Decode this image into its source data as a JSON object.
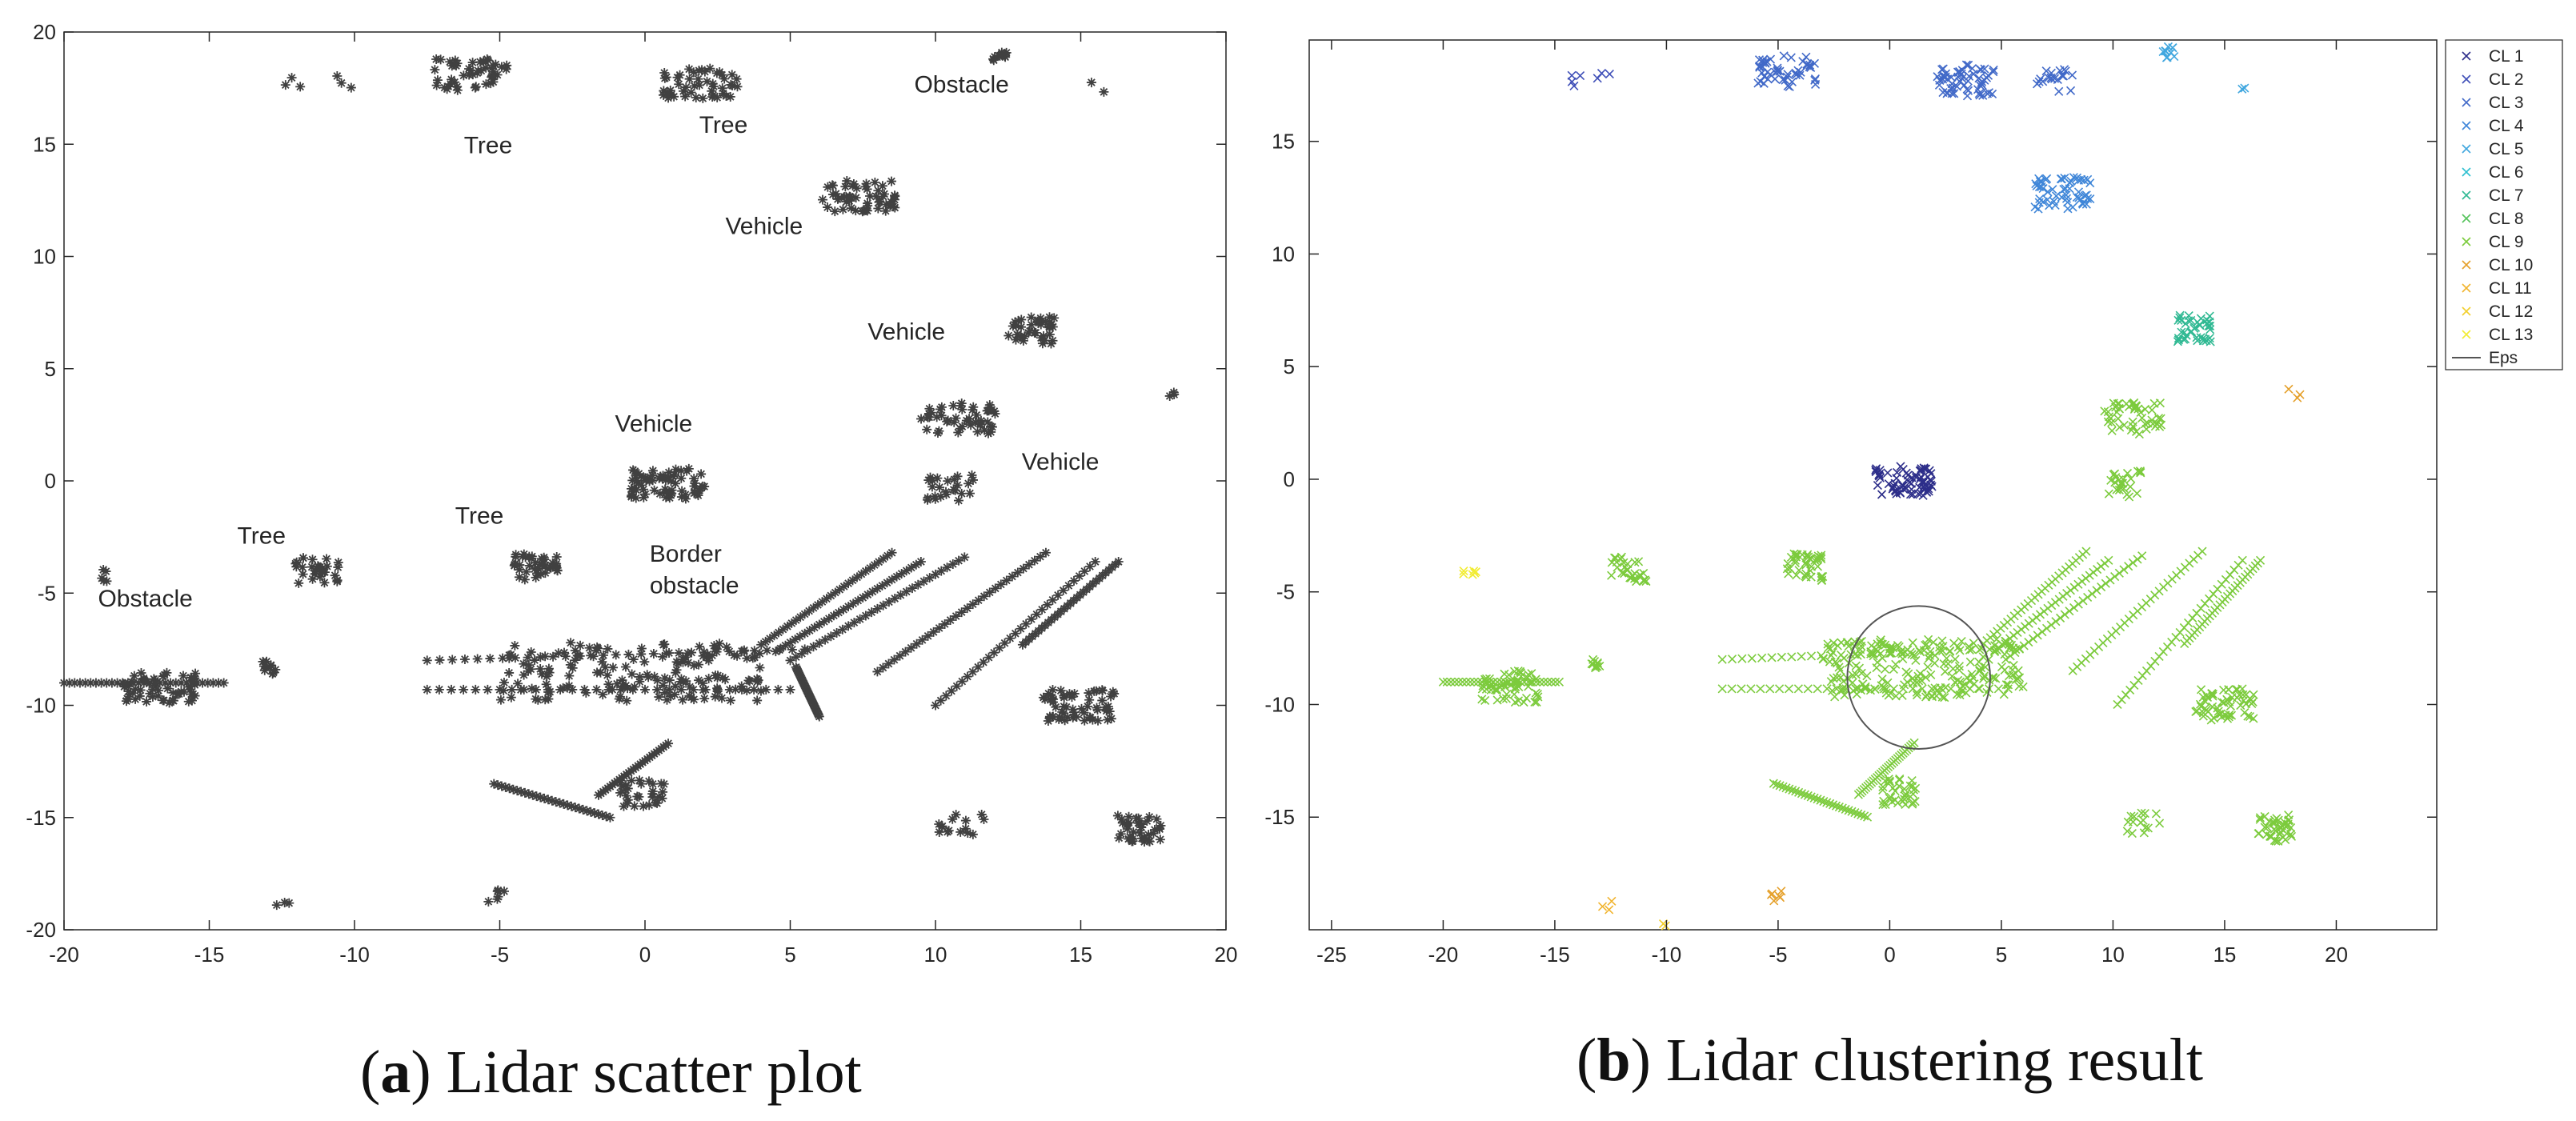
{
  "chart_data": [
    {
      "type": "scatter",
      "panel_label": "a",
      "caption": "Lidar scatter plot",
      "xlim": [
        -20,
        20
      ],
      "ylim": [
        -20,
        20
      ],
      "xticks": [
        -20,
        -15,
        -10,
        -5,
        0,
        5,
        10,
        15,
        20
      ],
      "yticks": [
        -20,
        -15,
        -10,
        -5,
        0,
        5,
        10,
        15,
        20
      ],
      "grid": false,
      "marker": "asterisk",
      "color": "#404040",
      "annotations": [
        {
          "text": "Tree",
          "x": -5.4,
          "y": 14.6
        },
        {
          "text": "Tree",
          "x": 2.7,
          "y": 15.5
        },
        {
          "text": "Obstacle",
          "x": 10.9,
          "y": 17.3
        },
        {
          "text": "Vehicle",
          "x": 4.1,
          "y": 11.0
        },
        {
          "text": "Vehicle",
          "x": 9.0,
          "y": 6.3
        },
        {
          "text": "Vehicle",
          "x": 0.3,
          "y": 2.2
        },
        {
          "text": "Vehicle",
          "x": 14.3,
          "y": 0.5
        },
        {
          "text": "Tree",
          "x": -13.2,
          "y": -2.8
        },
        {
          "text": "Tree",
          "x": -5.7,
          "y": -1.9
        },
        {
          "text": "Border",
          "x": 1.4,
          "y": -3.6
        },
        {
          "text": "obstacle",
          "x": 1.7,
          "y": -5.0
        },
        {
          "text": "Obstacle",
          "x": -17.2,
          "y": -5.6
        }
      ],
      "clusters": [
        {
          "x": 5.5,
          "y": 8.3,
          "n": 70,
          "shape": "band",
          "x2": 3.0,
          "y2": 17.7
        },
        {
          "x": -12.1,
          "y": 17.7,
          "n": 3
        },
        {
          "x": -10.4,
          "y": 17.8,
          "n": 3
        },
        {
          "x": -6.0,
          "y": 18.1,
          "n": 50
        },
        {
          "x": 1.9,
          "y": 17.7,
          "n": 50
        },
        {
          "x": 7.4,
          "y": 12.7,
          "n": 55
        },
        {
          "x": 13.3,
          "y": 6.7,
          "n": 40
        },
        {
          "x": 10.8,
          "y": 2.8,
          "n": 50
        },
        {
          "x": 0.8,
          "y": -0.1,
          "n": 70
        },
        {
          "x": 10.5,
          "y": -0.3,
          "n": 25
        },
        {
          "x": -18.7,
          "y": -4.2,
          "n": 5
        },
        {
          "x": -11.3,
          "y": -4.0,
          "n": 30
        },
        {
          "x": -3.7,
          "y": -3.8,
          "n": 40
        },
        {
          "x": -16.7,
          "y": -9.2,
          "n": 60
        },
        {
          "x": -12.9,
          "y": -8.3,
          "n": 10
        },
        {
          "x": -0.5,
          "y": -8.5,
          "n": 160
        },
        {
          "x": 14.9,
          "y": -10.0,
          "n": 60
        },
        {
          "x": -0.1,
          "y": -13.9,
          "n": 30
        },
        {
          "x": 17.0,
          "y": -15.5,
          "n": 40
        },
        {
          "x": 10.9,
          "y": -15.4,
          "n": 15
        },
        {
          "x": -5.1,
          "y": -18.5,
          "n": 6
        },
        {
          "x": -12.5,
          "y": -19.0,
          "n": 3
        },
        {
          "x": 18.2,
          "y": 3.8,
          "n": 3
        },
        {
          "x": 15.6,
          "y": 17.6,
          "n": 2
        },
        {
          "x": 12.2,
          "y": 18.9,
          "n": 10
        }
      ]
    },
    {
      "type": "scatter",
      "panel_label": "b",
      "caption": "Lidar clustering result",
      "xlim": [
        -26,
        24.5
      ],
      "ylim": [
        -20,
        19.5
      ],
      "xticks": [
        -25,
        -20,
        -15,
        -10,
        -5,
        0,
        5,
        10,
        15,
        20
      ],
      "yticks": [
        -15,
        -10,
        -5,
        0,
        5,
        10,
        15
      ],
      "grid": false,
      "marker": "x",
      "legend": {
        "placement": "outside-top-right",
        "entries": [
          {
            "label": "CL 1",
            "color": "#2d2e8a"
          },
          {
            "label": "CL 2",
            "color": "#3f4fb8"
          },
          {
            "label": "CL 3",
            "color": "#4169c8"
          },
          {
            "label": "CL 4",
            "color": "#3f86d8"
          },
          {
            "label": "CL 5",
            "color": "#41a7df"
          },
          {
            "label": "CL 6",
            "color": "#2fbfd0"
          },
          {
            "label": "CL 7",
            "color": "#30b993"
          },
          {
            "label": "CL 8",
            "color": "#55c35b"
          },
          {
            "label": "CL 9",
            "color": "#7ccb3d"
          },
          {
            "label": "CL 10",
            "color": "#e5a02a"
          },
          {
            "label": "CL 11",
            "color": "#f1b42f"
          },
          {
            "label": "CL 12",
            "color": "#f2cf2d"
          },
          {
            "label": "CL 13",
            "color": "#f2ec33"
          },
          {
            "label": "Eps",
            "color": "#555555"
          }
        ]
      },
      "eps_circle": {
        "cx": 1.3,
        "cy": -8.8,
        "r": 3.2
      },
      "clusters": [
        {
          "x": -14.1,
          "y": 17.7,
          "n": 4,
          "label": "CL 2"
        },
        {
          "x": -12.8,
          "y": 17.8,
          "n": 3,
          "label": "CL 2"
        },
        {
          "x": -4.6,
          "y": 18.1,
          "n": 50,
          "label": "CL 3"
        },
        {
          "x": 3.4,
          "y": 17.7,
          "n": 60,
          "label": "CL 3"
        },
        {
          "x": 7.4,
          "y": 17.6,
          "n": 20,
          "label": "CL 3"
        },
        {
          "x": 7.8,
          "y": 12.7,
          "n": 55,
          "label": "CL 4"
        },
        {
          "x": 12.5,
          "y": 19.0,
          "n": 10,
          "label": "CL 5"
        },
        {
          "x": 15.6,
          "y": 17.6,
          "n": 2,
          "label": "CL 5"
        },
        {
          "x": 13.6,
          "y": 6.7,
          "n": 40,
          "label": "CL 7"
        },
        {
          "x": 10.9,
          "y": 2.7,
          "n": 50,
          "label": "CL 9"
        },
        {
          "x": 0.6,
          "y": -0.1,
          "n": 70,
          "label": "CL 1"
        },
        {
          "x": 10.5,
          "y": -0.2,
          "n": 25,
          "label": "CL 9"
        },
        {
          "x": -18.8,
          "y": -4.2,
          "n": 6,
          "label": "CL 13"
        },
        {
          "x": -11.7,
          "y": -4.0,
          "n": 30,
          "label": "CL 9"
        },
        {
          "x": -3.8,
          "y": -3.9,
          "n": 40,
          "label": "CL 9"
        },
        {
          "x": -17.0,
          "y": -9.2,
          "n": 60,
          "label": "CL 9"
        },
        {
          "x": -13.1,
          "y": -8.3,
          "n": 10,
          "label": "CL 9"
        },
        {
          "x": 1.5,
          "y": -8.4,
          "n": 220,
          "label": "CL 9"
        },
        {
          "x": 15.0,
          "y": -10.0,
          "n": 60,
          "label": "CL 9"
        },
        {
          "x": 0.4,
          "y": -13.9,
          "n": 35,
          "label": "CL 9"
        },
        {
          "x": 17.2,
          "y": -15.5,
          "n": 40,
          "label": "CL 9"
        },
        {
          "x": 11.4,
          "y": -15.4,
          "n": 15,
          "label": "CL 9"
        },
        {
          "x": -5.1,
          "y": -18.5,
          "n": 6,
          "label": "CL 10"
        },
        {
          "x": -12.6,
          "y": -19.0,
          "n": 3,
          "label": "CL 11"
        },
        {
          "x": -10.0,
          "y": -19.8,
          "n": 2,
          "label": "CL 12"
        },
        {
          "x": 18.1,
          "y": 3.8,
          "n": 3,
          "label": "CL 10"
        }
      ]
    }
  ]
}
